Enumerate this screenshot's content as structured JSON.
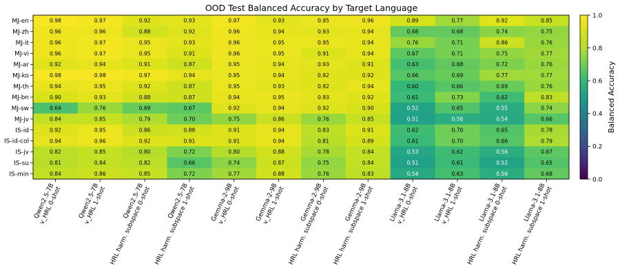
{
  "chart_data": {
    "type": "heatmap",
    "title": "OOD Test Balanced Accuracy by Target Language",
    "rows": [
      "MJ-en",
      "MJ-zh",
      "MJ-it",
      "MJ-vi",
      "MJ-ar",
      "MJ-ko",
      "MJ-th",
      "MJ-bn",
      "MJ-sw",
      "MJ-jv",
      "IS-id",
      "IS-id-col",
      "IS-jv",
      "IS-su",
      "IS-min"
    ],
    "columns": [
      {
        "line1": "Qwen2.5-7B",
        "line2": "v_HRL 0-shot"
      },
      {
        "line1": "Qwen2.5-7B",
        "line2": "v_HRL 1-shot"
      },
      {
        "line1": "Qwen2.5-7B",
        "line2": "HRL harm. subspace 0-shot"
      },
      {
        "line1": "Qwen2.5-7B",
        "line2": "HRL harm. subspace 1-shot"
      },
      {
        "line1": "Gemma-2-9B",
        "line2": "v_HRL 0-shot"
      },
      {
        "line1": "Gemma-2-9B",
        "line2": "v_HRL 1-shot"
      },
      {
        "line1": "Gemma-2-9B",
        "line2": "HRL harm. subspace 0-shot"
      },
      {
        "line1": "Gemma-2-9B",
        "line2": "HRL harm. subspace 1-shot"
      },
      {
        "line1": "Llama-3.1-8B",
        "line2": "v_HRL 0-shot"
      },
      {
        "line1": "Llama-3.1-8B",
        "line2": "v_HRL 1-shot"
      },
      {
        "line1": "Llama-3.1-8B",
        "line2": "HRL harm. subspace 0-shot"
      },
      {
        "line1": "Llama-3.1-8B",
        "line2": "HRL harm. subspace 1-shot"
      }
    ],
    "values": [
      [
        0.98,
        0.97,
        0.92,
        0.93,
        0.97,
        0.93,
        0.95,
        0.96,
        0.89,
        0.77,
        0.92,
        0.85
      ],
      [
        0.96,
        0.96,
        0.88,
        0.92,
        0.96,
        0.94,
        0.93,
        0.94,
        0.68,
        0.68,
        0.74,
        0.75
      ],
      [
        0.96,
        0.97,
        0.95,
        0.93,
        0.96,
        0.95,
        0.95,
        0.94,
        0.76,
        0.71,
        0.86,
        0.76
      ],
      [
        0.96,
        0.97,
        0.95,
        0.91,
        0.96,
        0.95,
        0.91,
        0.94,
        0.67,
        0.71,
        0.75,
        0.77
      ],
      [
        0.92,
        0.94,
        0.91,
        0.87,
        0.95,
        0.94,
        0.93,
        0.91,
        0.63,
        0.68,
        0.72,
        0.76
      ],
      [
        0.98,
        0.98,
        0.97,
        0.94,
        0.95,
        0.94,
        0.92,
        0.92,
        0.66,
        0.69,
        0.77,
        0.77
      ],
      [
        0.94,
        0.95,
        0.92,
        0.87,
        0.95,
        0.93,
        0.92,
        0.94,
        0.6,
        0.66,
        0.69,
        0.76
      ],
      [
        0.9,
        0.93,
        0.88,
        0.87,
        0.94,
        0.95,
        0.93,
        0.92,
        0.61,
        0.73,
        0.62,
        0.83
      ],
      [
        0.64,
        0.76,
        0.69,
        0.67,
        0.92,
        0.94,
        0.92,
        0.9,
        0.52,
        0.65,
        0.55,
        0.74
      ],
      [
        0.84,
        0.85,
        0.79,
        0.7,
        0.75,
        0.86,
        0.76,
        0.85,
        0.51,
        0.56,
        0.54,
        0.66
      ],
      [
        0.92,
        0.95,
        0.86,
        0.88,
        0.91,
        0.94,
        0.83,
        0.91,
        0.62,
        0.7,
        0.65,
        0.78
      ],
      [
        0.94,
        0.96,
        0.92,
        0.91,
        0.91,
        0.94,
        0.81,
        0.89,
        0.61,
        0.7,
        0.66,
        0.79
      ],
      [
        0.82,
        0.85,
        0.8,
        0.72,
        0.8,
        0.88,
        0.78,
        0.84,
        0.53,
        0.62,
        0.56,
        0.67
      ],
      [
        0.81,
        0.84,
        0.82,
        0.66,
        0.74,
        0.87,
        0.75,
        0.84,
        0.51,
        0.61,
        0.52,
        0.65
      ],
      [
        0.84,
        0.86,
        0.85,
        0.72,
        0.77,
        0.88,
        0.76,
        0.83,
        0.54,
        0.63,
        0.56,
        0.68
      ]
    ],
    "colorbar": {
      "label": "Balanced Accuracy",
      "range": [
        0.0,
        1.0
      ],
      "ticks": [
        "0.0",
        "0.2",
        "0.4",
        "0.6",
        "0.8",
        "1.0"
      ],
      "colormap": "viridis"
    }
  }
}
